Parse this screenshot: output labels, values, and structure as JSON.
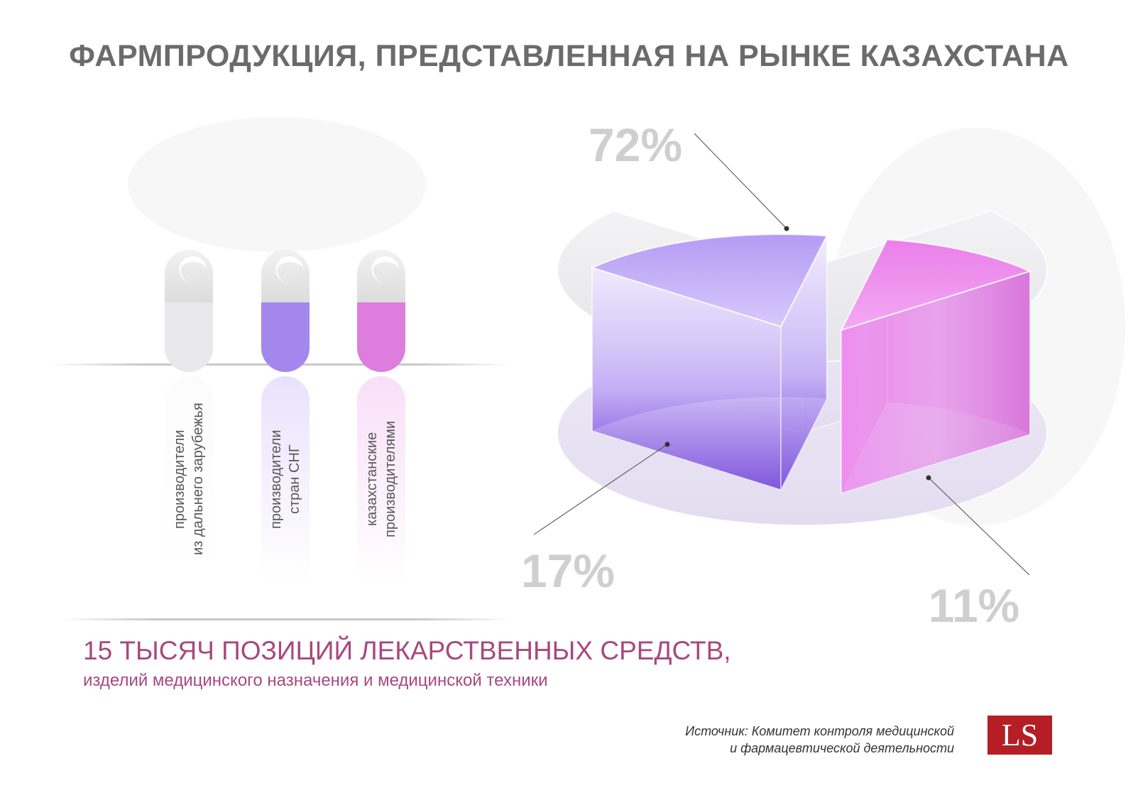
{
  "title": "ФАРМПРОДУКЦИЯ, ПРЕДСТАВЛЕННАЯ НА РЫНКЕ КАЗАХСТАНА",
  "colors": {
    "title": "#6b6b6b",
    "accent": "#a8487f",
    "label_gray": "#cfcfcf",
    "foreign": "#e9e9ed",
    "cis": "#a98bf3",
    "kazakh": "#e481e4",
    "logo_bg": "#b41e24"
  },
  "legend": [
    {
      "label": "производители\nиз дальнего зарубежья",
      "color": "#f0f0f2",
      "icon": "capsule-icon"
    },
    {
      "label": "производители\nстран СНГ",
      "color": "#a98bf3",
      "icon": "capsule-icon"
    },
    {
      "label": "казахстанские\nпроизводителями",
      "color": "#e481e4",
      "icon": "capsule-icon"
    }
  ],
  "chart_data": {
    "type": "pie",
    "title": "ФАРМПРОДУКЦИЯ, ПРЕДСТАВЛЕННАЯ НА РЫНКЕ КАЗАХСТАНА",
    "style": "3d-exploded",
    "categories": [
      "производители из дальнего зарубежья",
      "производители стран СНГ",
      "казахстанские производителями"
    ],
    "values": [
      72,
      17,
      11
    ],
    "labels": [
      "72%",
      "17%",
      "11%"
    ],
    "unit": "%",
    "colors": [
      "#ececf0",
      "#8f62ef",
      "#e07fe6"
    ]
  },
  "summary": {
    "main": "15 ТЫСЯЧ ПОЗИЦИЙ ЛЕКАРСТВЕННЫХ СРЕДСТВ,",
    "sub": "изделий медицинского назначения и медицинской техники"
  },
  "source": "Источник: Комитет контроля медицинской\nи фармацевтической деятельности",
  "logo": "LS"
}
